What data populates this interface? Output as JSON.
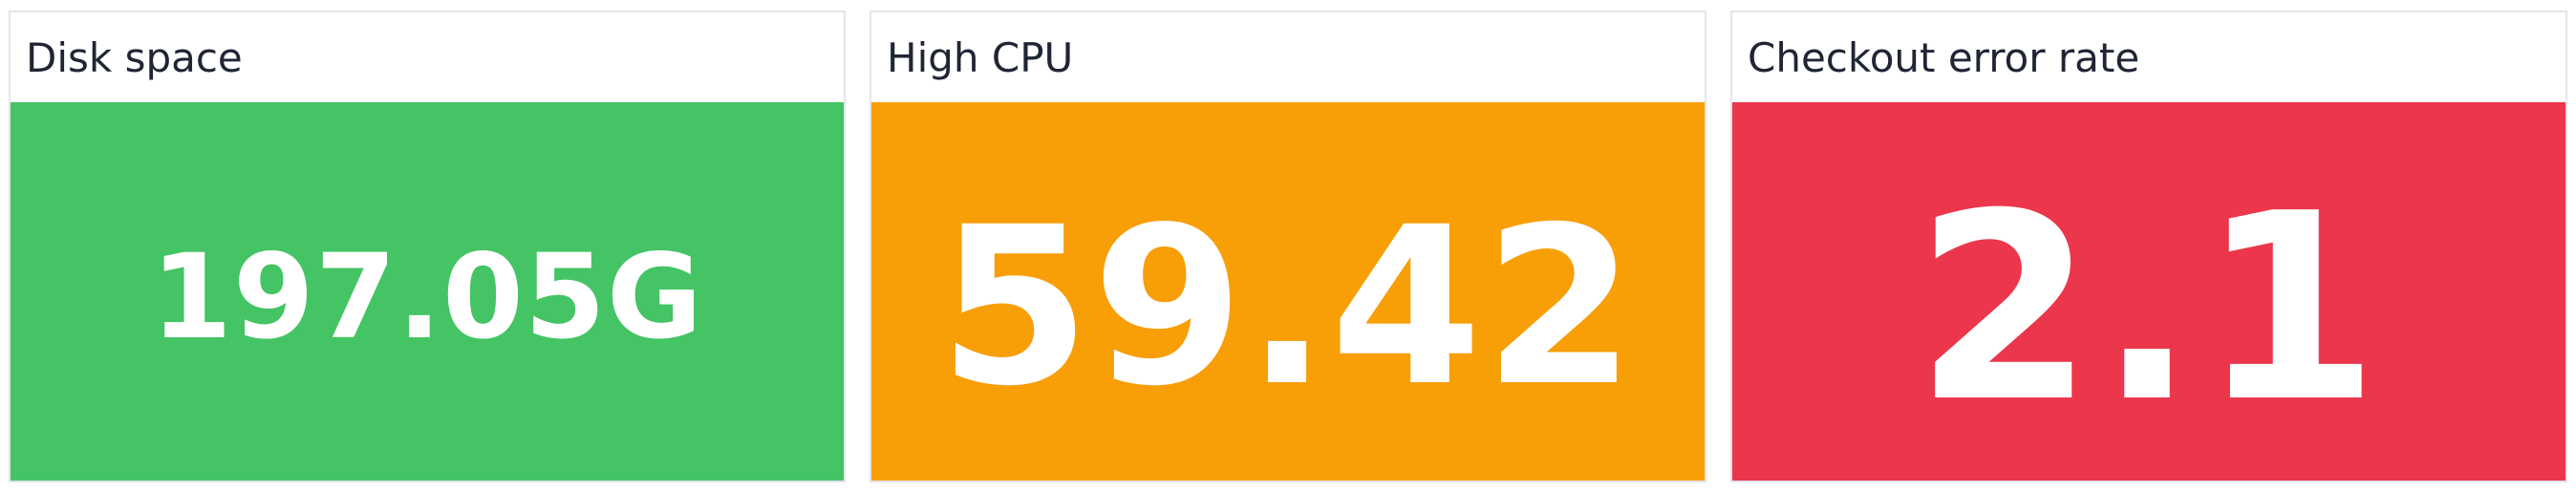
{
  "panels": [
    {
      "title": "Disk space",
      "value": "197.05G",
      "status": "ok",
      "color": "#44c465"
    },
    {
      "title": "High CPU",
      "value": "59.42",
      "status": "warning",
      "color": "#f89e07"
    },
    {
      "title": "Checkout error rate",
      "value": "2.1",
      "status": "critical",
      "color": "#eb364b"
    }
  ]
}
